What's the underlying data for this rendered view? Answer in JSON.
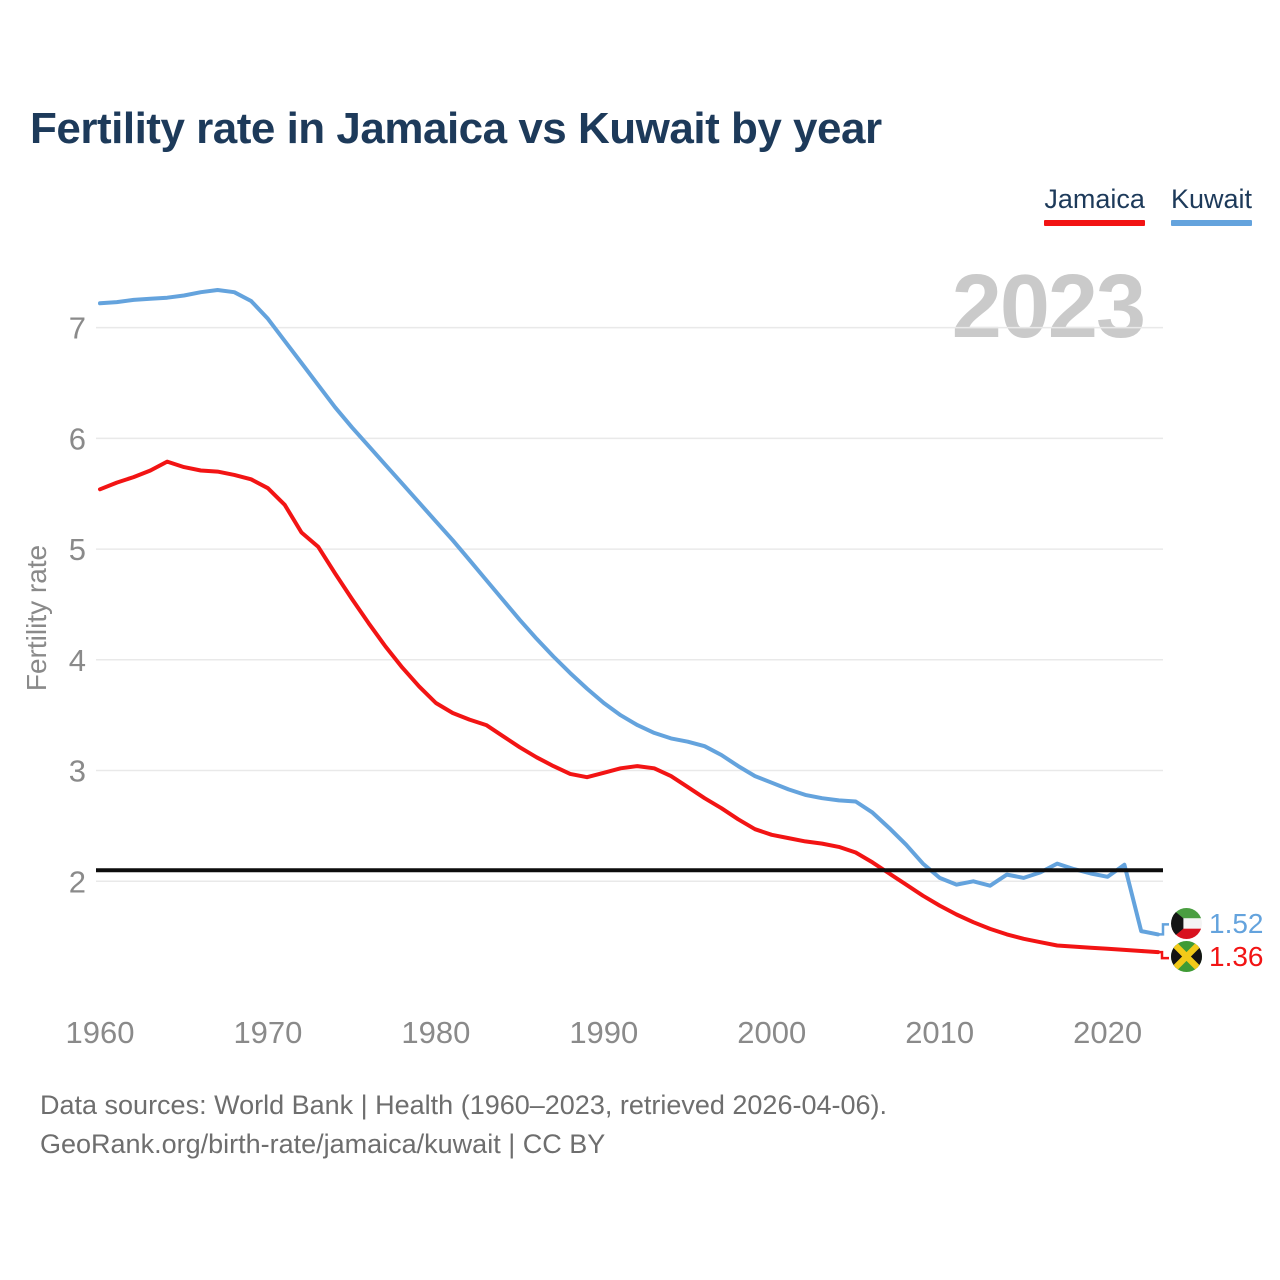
{
  "header": {
    "title": "Fertility rate in Jamaica vs Kuwait by year"
  },
  "legend": {
    "jamaica_label": "Jamaica",
    "kuwait_label": "Kuwait"
  },
  "watermark": "2023",
  "colors": {
    "jamaica": "#f21414",
    "kuwait": "#64a3dd",
    "replacement_line": "#0d0d0d",
    "grid": "#e9e9e9",
    "axis_text": "#8a8a8a",
    "title_text": "#1d3a5a",
    "watermark": "#cacaca",
    "footer_text": "#6e6e6e"
  },
  "end_labels": {
    "kuwait_value": "1.52",
    "jamaica_value": "1.36"
  },
  "footer": {
    "line1": "Data sources: World Bank | Health (1960–2023, retrieved 2026-04-06).",
    "line2": "GeoRank.org/birth-rate/jamaica/kuwait | CC BY"
  },
  "chart_data": {
    "type": "line",
    "title": "Fertility rate in Jamaica vs Kuwait by year",
    "xlabel": "",
    "ylabel": "Fertility rate",
    "xlim": [
      1960,
      2023
    ],
    "ylim": [
      1.0,
      7.43
    ],
    "x_ticks": [
      1960,
      1970,
      1980,
      1990,
      2000,
      2010,
      2020
    ],
    "y_ticks": [
      2,
      3,
      4,
      5,
      6,
      7
    ],
    "grid": "horizontal",
    "legend_position": "top-right",
    "replacement_line_y": 2.1,
    "x": [
      1960,
      1961,
      1962,
      1963,
      1964,
      1965,
      1966,
      1967,
      1968,
      1969,
      1970,
      1971,
      1972,
      1973,
      1974,
      1975,
      1976,
      1977,
      1978,
      1979,
      1980,
      1981,
      1982,
      1983,
      1984,
      1985,
      1986,
      1987,
      1988,
      1989,
      1990,
      1991,
      1992,
      1993,
      1994,
      1995,
      1996,
      1997,
      1998,
      1999,
      2000,
      2001,
      2002,
      2003,
      2004,
      2005,
      2006,
      2007,
      2008,
      2009,
      2010,
      2011,
      2012,
      2013,
      2014,
      2015,
      2016,
      2017,
      2018,
      2019,
      2020,
      2021,
      2022,
      2023
    ],
    "series": [
      {
        "name": "Jamaica",
        "color": "#f21414",
        "end_value_label": "1.36",
        "values": [
          5.54,
          5.6,
          5.65,
          5.71,
          5.79,
          5.74,
          5.71,
          5.7,
          5.67,
          5.63,
          5.55,
          5.4,
          5.15,
          5.02,
          4.78,
          4.55,
          4.33,
          4.12,
          3.93,
          3.76,
          3.61,
          3.52,
          3.46,
          3.41,
          3.31,
          3.21,
          3.12,
          3.04,
          2.97,
          2.94,
          2.98,
          3.02,
          3.04,
          3.02,
          2.95,
          2.85,
          2.75,
          2.66,
          2.56,
          2.47,
          2.42,
          2.39,
          2.36,
          2.34,
          2.31,
          2.26,
          2.17,
          2.07,
          1.97,
          1.87,
          1.78,
          1.7,
          1.63,
          1.57,
          1.52,
          1.48,
          1.45,
          1.42,
          1.41,
          1.4,
          1.39,
          1.38,
          1.37,
          1.36
        ]
      },
      {
        "name": "Kuwait",
        "color": "#64a3dd",
        "end_value_label": "1.52",
        "values": [
          7.22,
          7.23,
          7.25,
          7.26,
          7.27,
          7.29,
          7.32,
          7.34,
          7.32,
          7.24,
          7.08,
          6.88,
          6.68,
          6.48,
          6.28,
          6.1,
          5.93,
          5.76,
          5.59,
          5.42,
          5.25,
          5.08,
          4.9,
          4.72,
          4.54,
          4.36,
          4.19,
          4.03,
          3.88,
          3.74,
          3.61,
          3.5,
          3.41,
          3.34,
          3.29,
          3.26,
          3.22,
          3.14,
          3.04,
          2.95,
          2.89,
          2.83,
          2.78,
          2.75,
          2.73,
          2.72,
          2.62,
          2.48,
          2.33,
          2.16,
          2.03,
          1.97,
          2.0,
          1.96,
          2.06,
          2.03,
          2.08,
          2.16,
          2.11,
          2.07,
          2.04,
          2.15,
          1.55,
          1.52
        ]
      }
    ]
  }
}
